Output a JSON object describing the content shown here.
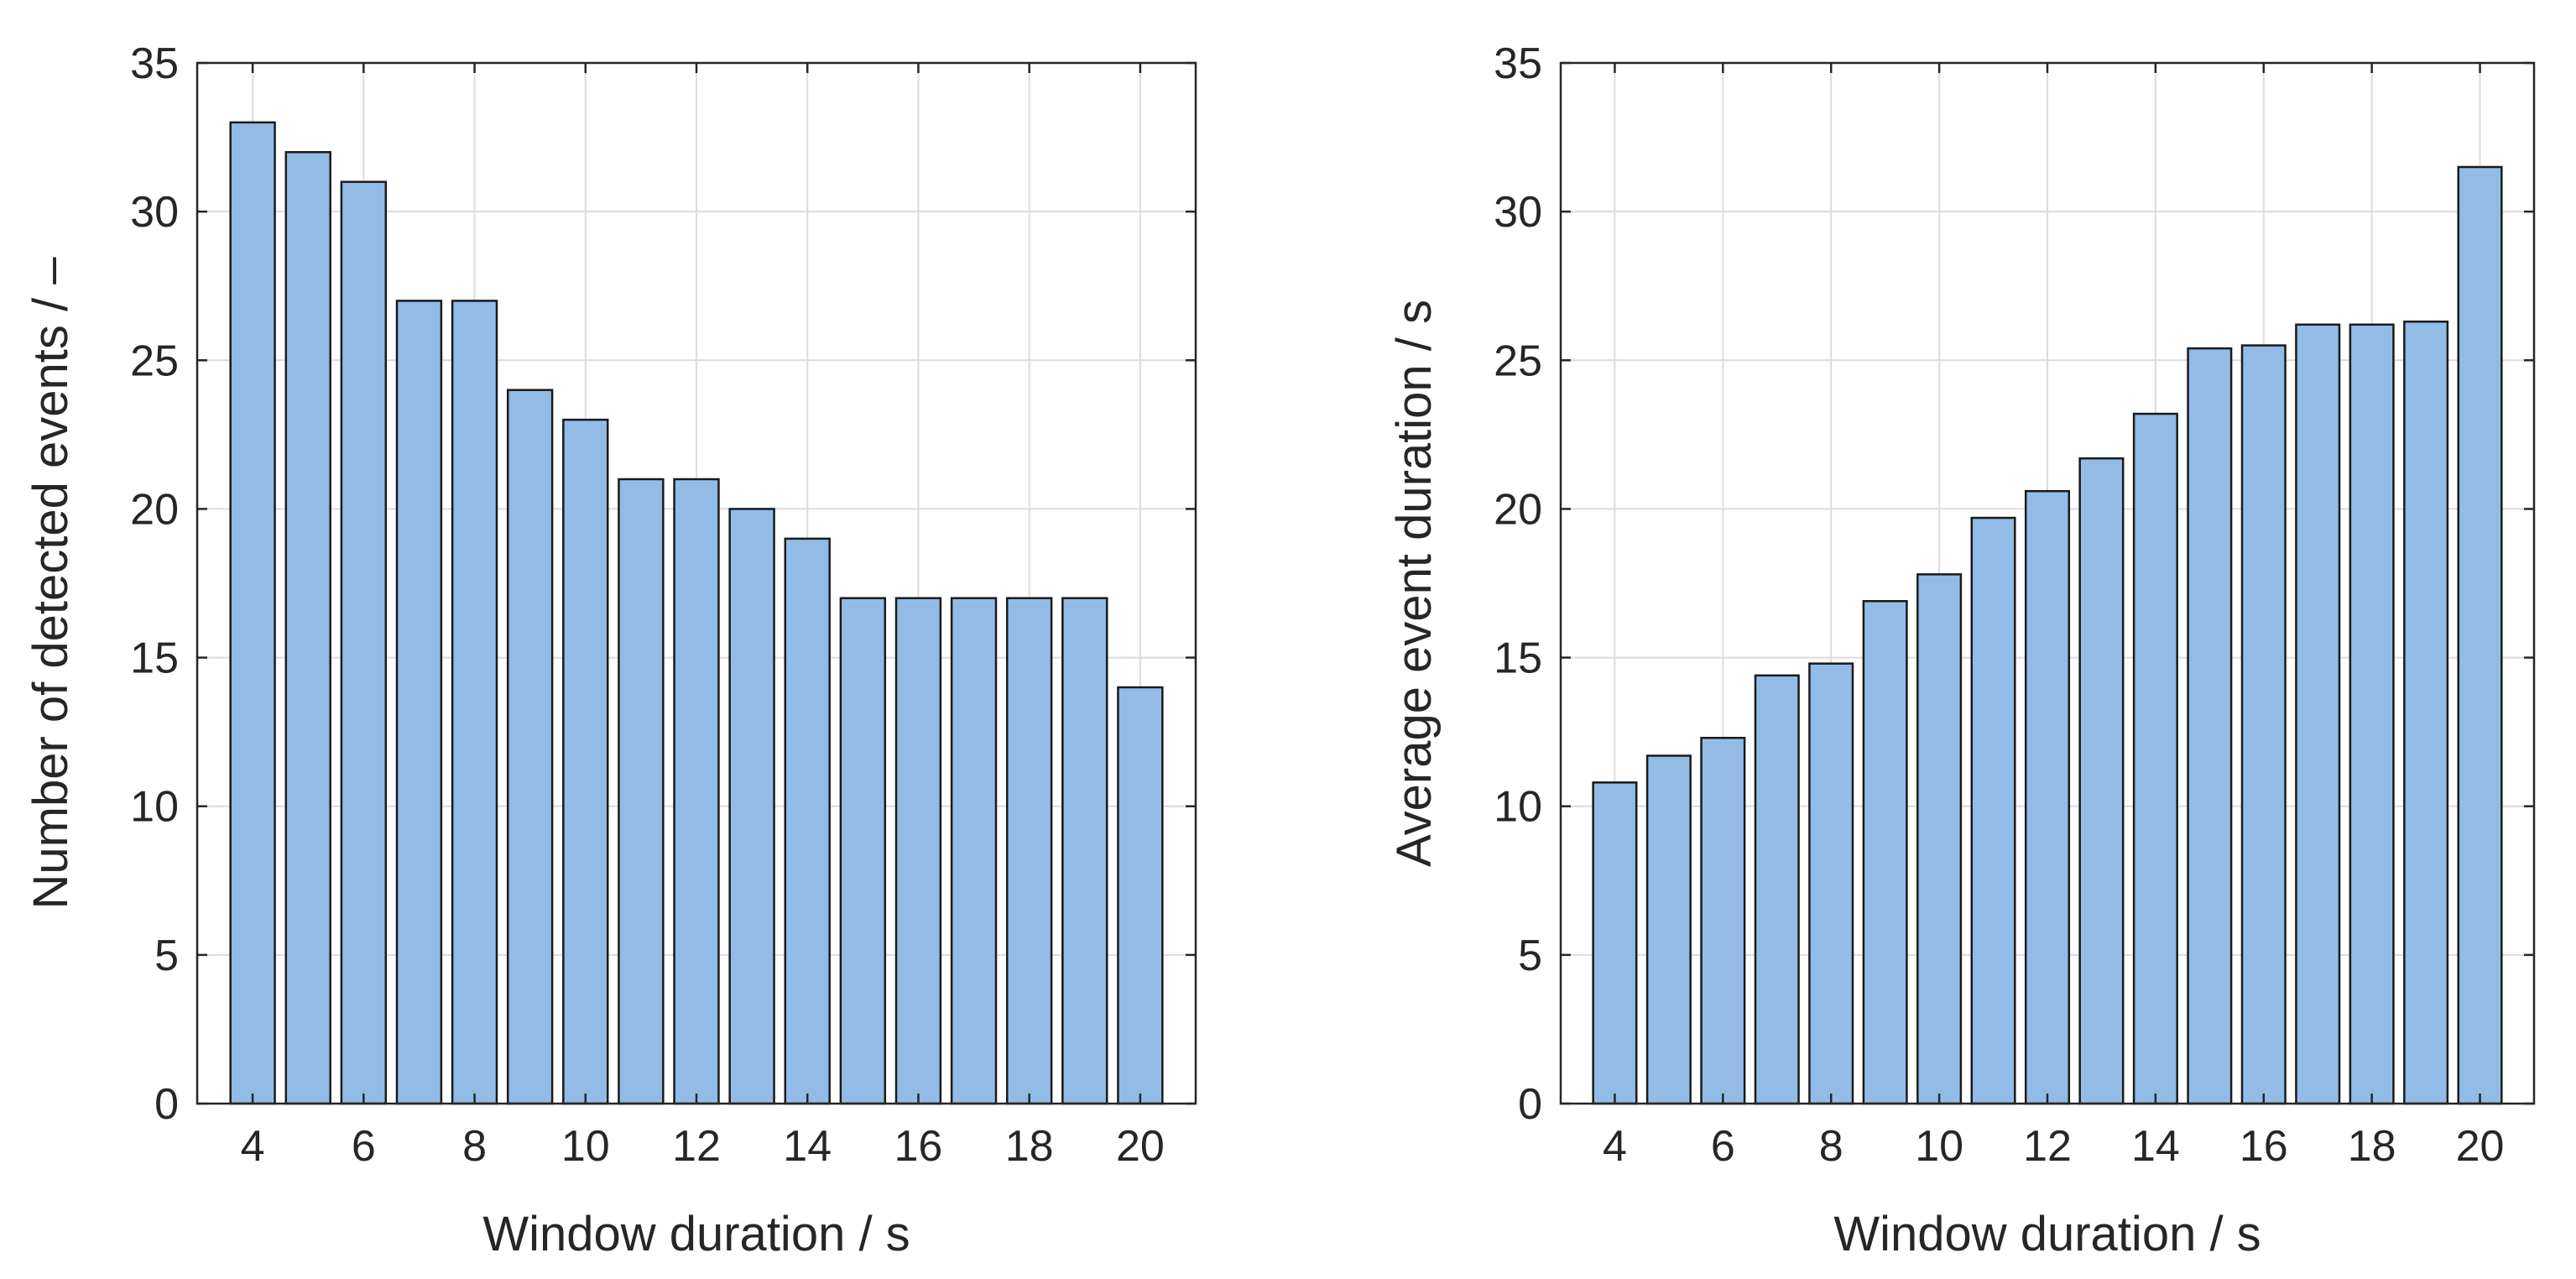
{
  "colors": {
    "bar_fill": "#92BCE6",
    "bar_edge": "#1A1A1A",
    "axis": "#262626",
    "grid": "#DCDCDC"
  },
  "chart_data": [
    {
      "id": "left",
      "type": "bar",
      "x": [
        4,
        5,
        6,
        7,
        8,
        9,
        10,
        11,
        12,
        13,
        14,
        15,
        16,
        17,
        18,
        19,
        20
      ],
      "values": [
        33,
        32,
        31,
        27,
        27,
        24,
        23,
        21,
        21,
        20,
        19,
        17,
        17,
        17,
        17,
        17,
        14
      ],
      "xlabel": "Window duration / s",
      "ylabel": "Number of detected events / –",
      "xticks": [
        "4",
        "6",
        "8",
        "10",
        "12",
        "14",
        "16",
        "18",
        "20"
      ],
      "yticks": [
        "0",
        "5",
        "10",
        "15",
        "20",
        "25",
        "30",
        "35"
      ],
      "xlim": [
        3,
        21
      ],
      "ylim": [
        0,
        35
      ],
      "grid": true
    },
    {
      "id": "right",
      "type": "bar",
      "x": [
        4,
        5,
        6,
        7,
        8,
        9,
        10,
        11,
        12,
        13,
        14,
        15,
        16,
        17,
        18,
        19,
        20
      ],
      "values": [
        10.8,
        11.7,
        12.3,
        14.4,
        14.8,
        16.9,
        17.8,
        19.7,
        20.6,
        21.7,
        23.2,
        25.4,
        25.5,
        26.2,
        26.2,
        26.3,
        31.5
      ],
      "xlabel": "Window duration / s",
      "ylabel": "Average event duration / s",
      "xticks": [
        "4",
        "6",
        "8",
        "10",
        "12",
        "14",
        "16",
        "18",
        "20"
      ],
      "yticks": [
        "0",
        "5",
        "10",
        "15",
        "20",
        "25",
        "30",
        "35"
      ],
      "xlim": [
        3,
        21
      ],
      "ylim": [
        0,
        35
      ],
      "grid": true
    }
  ]
}
